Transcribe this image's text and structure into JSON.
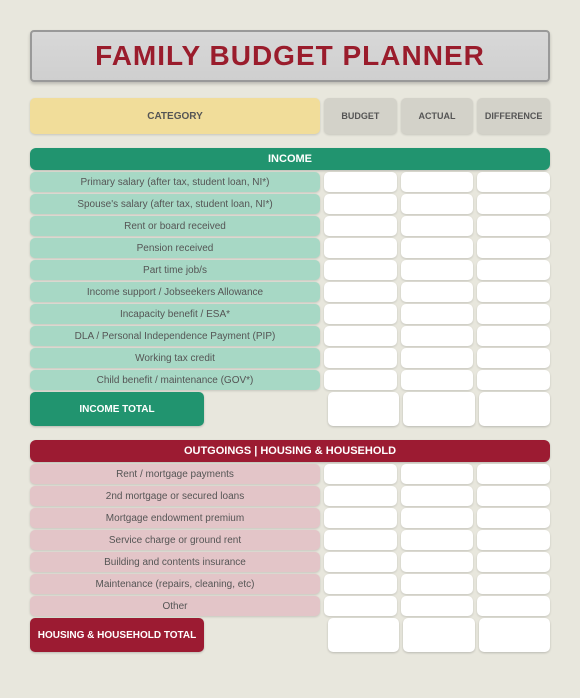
{
  "title": "FAMILY BUDGET PLANNER",
  "columns": {
    "category": "CATEGORY",
    "budget": "BUDGET",
    "actual": "ACTUAL",
    "diff": "DIFFERENCE"
  },
  "income": {
    "header": "INCOME",
    "rows": [
      "Primary salary (after tax, student loan, NI*)",
      "Spouse's salary (after tax, student loan, NI*)",
      "Rent or board received",
      "Pension received",
      "Part time job/s",
      "Income support / Jobseekers Allowance",
      "Incapacity benefit / ESA*",
      "DLA / Personal Independence Payment (PIP)",
      "Working tax credit",
      "Child benefit / maintenance (GOV*)"
    ],
    "total_label": "INCOME TOTAL",
    "colors": {
      "header_bg": "#21946f",
      "row_bg": "#a7d8c5",
      "total_bg": "#21946f"
    }
  },
  "outgoings": {
    "header": "OUTGOINGS | HOUSING & HOUSEHOLD",
    "rows": [
      "Rent / mortgage payments",
      "2nd mortgage or secured loans",
      "Mortgage endowment premium",
      "Service charge or ground rent",
      "Building and contents insurance",
      "Maintenance (repairs, cleaning, etc)",
      "Other"
    ],
    "total_label": "HOUSING & HOUSEHOLD TOTAL",
    "colors": {
      "header_bg": "#9c1b32",
      "row_bg": "#e3c5c8",
      "total_bg": "#9c1b32"
    }
  },
  "style": {
    "page_bg": "#e8e7dd",
    "title_color": "#9a1c2c",
    "header_cat_bg": "#f1dd9a",
    "header_val_bg": "#d3d2c9",
    "value_cell_bg": "#ffffff"
  }
}
